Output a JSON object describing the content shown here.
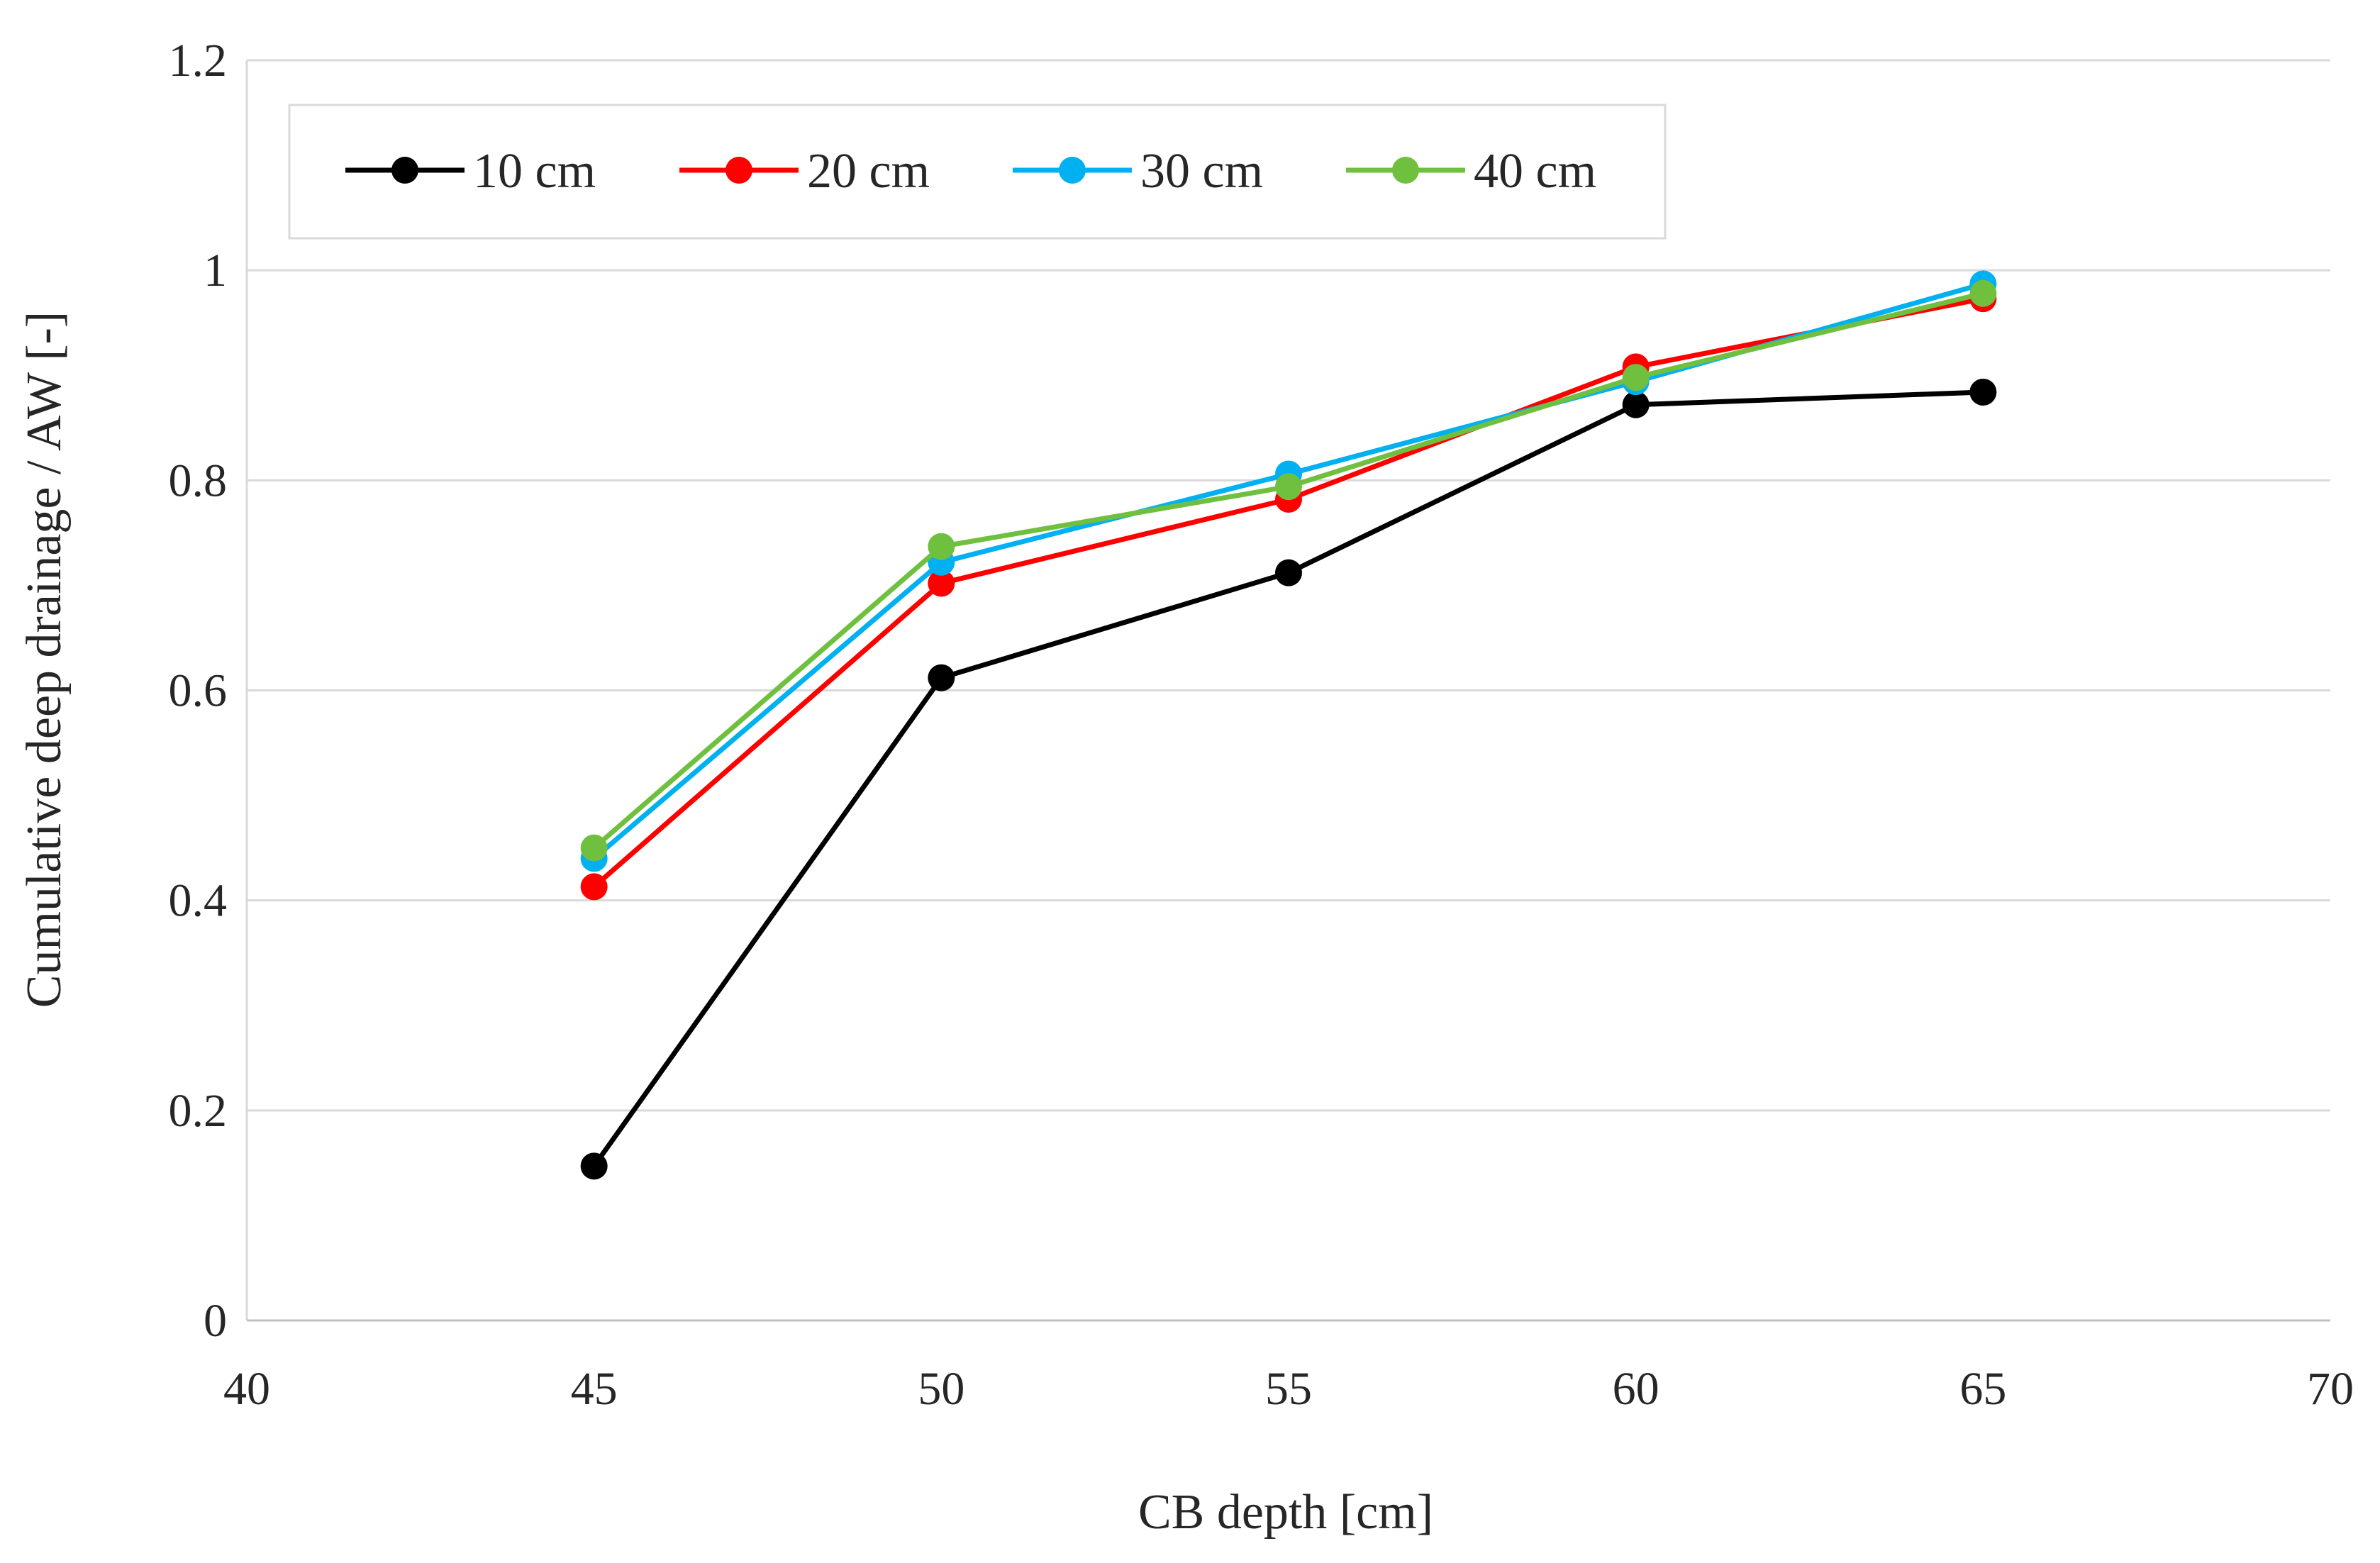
{
  "chart_data": {
    "type": "line",
    "xlabel": "CB depth [cm]",
    "ylabel": "Cumulative deep drainage / AW [-]",
    "xlim": [
      40,
      70
    ],
    "ylim": [
      0,
      1.2
    ],
    "x_ticks": [
      "40",
      "45",
      "50",
      "55",
      "60",
      "65",
      "70"
    ],
    "y_ticks": [
      "0",
      "0.2",
      "0.4",
      "0.6",
      "0.8",
      "1",
      "1.2"
    ],
    "grid": "horizontal",
    "legend_position": "top-left",
    "x": [
      45,
      50,
      55,
      60,
      65
    ],
    "series": [
      {
        "name": "10 cm",
        "color": "#000000",
        "values": [
          0.147,
          0.612,
          0.712,
          0.872,
          0.884
        ]
      },
      {
        "name": "20 cm",
        "color": "#ff0000",
        "values": [
          0.413,
          0.702,
          0.782,
          0.908,
          0.973
        ]
      },
      {
        "name": "30 cm",
        "color": "#00b0f0",
        "values": [
          0.44,
          0.722,
          0.806,
          0.894,
          0.987
        ]
      },
      {
        "name": "40 cm",
        "color": "#70c040",
        "values": [
          0.45,
          0.737,
          0.794,
          0.898,
          0.978
        ]
      }
    ]
  }
}
